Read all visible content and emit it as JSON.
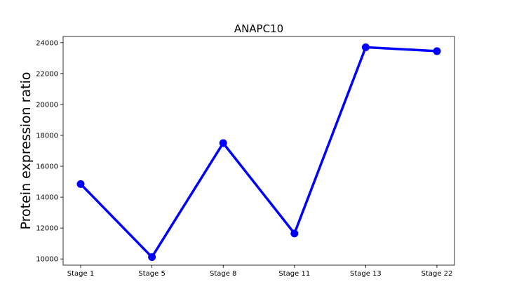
{
  "chart_data": {
    "type": "line",
    "title": "ANAPC10",
    "xlabel": "",
    "ylabel": "Protein expression ratio",
    "categories": [
      "Stage 1",
      "Stage 5",
      "Stage 8",
      "Stage 11",
      "Stage 13",
      "Stage 22"
    ],
    "series": [
      {
        "values": [
          14850,
          10120,
          17500,
          11650,
          23700,
          23450
        ]
      }
    ],
    "ylim": [
      9600,
      24400
    ],
    "yticks": [
      10000,
      12000,
      14000,
      16000,
      18000,
      20000,
      22000,
      24000
    ],
    "grid": false,
    "line_color": "#0000ff"
  }
}
